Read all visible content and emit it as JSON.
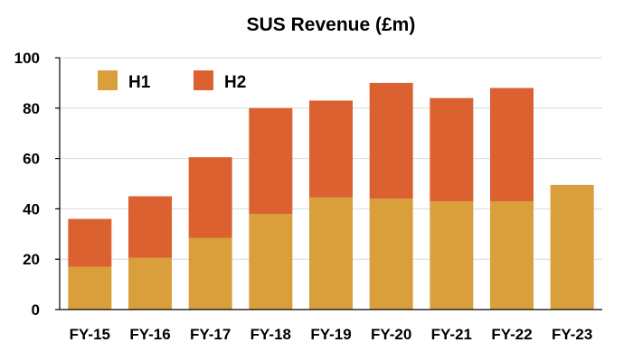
{
  "chart_data": {
    "type": "bar",
    "stacked": true,
    "title": "SUS Revenue (£m)",
    "xlabel": "",
    "ylabel": "",
    "categories": [
      "FY-15",
      "FY-16",
      "FY-17",
      "FY-18",
      "FY-19",
      "FY-20",
      "FY-21",
      "FY-22",
      "FY-23"
    ],
    "series": [
      {
        "name": "H1",
        "color": "#d89f3a",
        "values": [
          17,
          20.5,
          28.5,
          38,
          44.5,
          44,
          43,
          43,
          49.5
        ]
      },
      {
        "name": "H2",
        "color": "#db6130",
        "values": [
          19,
          24.5,
          32,
          42,
          38.5,
          46,
          41,
          45,
          null
        ]
      }
    ],
    "ylim": [
      0,
      100
    ],
    "yticks": [
      0,
      20,
      40,
      60,
      80,
      100
    ],
    "grid": true,
    "legend_position": "top-left"
  }
}
